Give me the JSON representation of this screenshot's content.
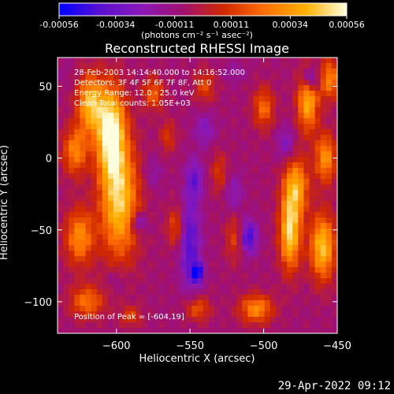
{
  "colorbar": {
    "ticks": [
      "-0.00056",
      "-0.00034",
      "-0.00011",
      "0.00011",
      "0.00034",
      "0.00056"
    ],
    "tick_values": [
      -0.00056,
      -0.00034,
      -0.00011,
      0.00011,
      0.00034,
      0.00056
    ],
    "range": [
      -0.00056,
      0.00056
    ],
    "label": "(photons cm⁻² s⁻¹ asec⁻²)",
    "stops": [
      "#0000ff",
      "#5a10d0",
      "#8a18b8",
      "#a01070",
      "#d02800",
      "#ff7000",
      "#ffb000",
      "#ffffe0"
    ]
  },
  "chart_data": {
    "type": "heatmap",
    "title": "Reconstructed RHESSI Image",
    "xlabel": "Heliocentric X (arcsec)",
    "ylabel": "Heliocentric Y (arcsec)",
    "xlim": [
      -640,
      -450
    ],
    "ylim": [
      -122,
      70
    ],
    "xticks": [
      -600,
      -550,
      -500,
      -450
    ],
    "yticks": [
      50,
      0,
      -50,
      -100
    ],
    "xtick_labels": [
      "−600",
      "−550",
      "−500",
      "−450"
    ],
    "ytick_labels": [
      "50",
      "0",
      "−50",
      "−100"
    ],
    "peak": {
      "x": -604,
      "y": 19
    },
    "blobs": [
      {
        "x": -604,
        "y": 19,
        "v": 0.00056,
        "sx": 7,
        "sy": 22
      },
      {
        "x": -618,
        "y": 38,
        "v": 0.0004,
        "sx": 6,
        "sy": 14
      },
      {
        "x": -598,
        "y": -30,
        "v": 0.00045,
        "sx": 9,
        "sy": 28
      },
      {
        "x": -625,
        "y": -55,
        "v": 0.0003,
        "sx": 7,
        "sy": 14
      },
      {
        "x": -628,
        "y": 5,
        "v": 0.00028,
        "sx": 6,
        "sy": 12
      },
      {
        "x": -575,
        "y": 45,
        "v": 0.0002,
        "sx": 5,
        "sy": 8
      },
      {
        "x": -560,
        "y": -48,
        "v": 0.00016,
        "sx": 4,
        "sy": 10
      },
      {
        "x": -565,
        "y": 15,
        "v": 0.0001,
        "sx": 4,
        "sy": 8
      },
      {
        "x": -540,
        "y": 50,
        "v": 0.00014,
        "sx": 5,
        "sy": 8
      },
      {
        "x": -530,
        "y": -10,
        "v": 0.0001,
        "sx": 4,
        "sy": 10
      },
      {
        "x": -520,
        "y": -55,
        "v": 0.00012,
        "sx": 4,
        "sy": 12
      },
      {
        "x": -500,
        "y": 35,
        "v": 0.00022,
        "sx": 5,
        "sy": 10
      },
      {
        "x": -478,
        "y": -20,
        "v": 0.00036,
        "sx": 6,
        "sy": 14
      },
      {
        "x": -482,
        "y": -52,
        "v": 0.00048,
        "sx": 5,
        "sy": 18
      },
      {
        "x": -460,
        "y": -62,
        "v": 0.00044,
        "sx": 6,
        "sy": 16
      },
      {
        "x": -470,
        "y": 40,
        "v": 0.0004,
        "sx": 5,
        "sy": 15
      },
      {
        "x": -455,
        "y": 55,
        "v": 0.00028,
        "sx": 5,
        "sy": 10
      },
      {
        "x": -458,
        "y": 0,
        "v": 0.00032,
        "sx": 5,
        "sy": 12
      },
      {
        "x": -505,
        "y": -105,
        "v": 0.0003,
        "sx": 8,
        "sy": 7
      },
      {
        "x": -620,
        "y": -100,
        "v": 0.00024,
        "sx": 8,
        "sy": 8
      },
      {
        "x": -545,
        "y": -105,
        "v": 0.00018,
        "sx": 6,
        "sy": 6
      },
      {
        "x": -590,
        "y": -110,
        "v": 0.00012,
        "sx": 5,
        "sy": 5
      },
      {
        "x": -585,
        "y": -45,
        "v": -0.00034,
        "sx": 4,
        "sy": 5
      },
      {
        "x": -550,
        "y": -60,
        "v": -0.0004,
        "sx": 5,
        "sy": 22
      },
      {
        "x": -545,
        "y": -80,
        "v": -0.0005,
        "sx": 3,
        "sy": 5
      },
      {
        "x": -547,
        "y": -15,
        "v": -0.00034,
        "sx": 4,
        "sy": 10
      },
      {
        "x": -510,
        "y": -55,
        "v": -0.00045,
        "sx": 4,
        "sy": 8
      },
      {
        "x": -520,
        "y": -25,
        "v": -0.00025,
        "sx": 4,
        "sy": 10
      },
      {
        "x": -540,
        "y": 20,
        "v": -0.00026,
        "sx": 5,
        "sy": 8
      },
      {
        "x": -468,
        "y": 55,
        "v": -0.00045,
        "sx": 4,
        "sy": 6
      },
      {
        "x": -485,
        "y": 10,
        "v": -0.00028,
        "sx": 4,
        "sy": 8
      },
      {
        "x": -575,
        "y": -10,
        "v": -0.0002,
        "sx": 4,
        "sy": 8
      },
      {
        "x": -600,
        "y": -85,
        "v": -0.00018,
        "sx": 5,
        "sy": 6
      },
      {
        "x": -520,
        "y": 60,
        "v": -0.00018,
        "sx": 5,
        "sy": 5
      },
      {
        "x": -635,
        "y": 60,
        "v": -0.00012,
        "sx": 4,
        "sy": 5
      }
    ],
    "baseline": -8e-05
  },
  "info": {
    "time_range": "28-Feb-2003 14:14:40.000 to 14:16:52.000",
    "detectors": "Detectors: 3F 4F 5F 6F 7F 8F, Att 0",
    "energy": "Energy Range: 12.0 - 25.0 keV",
    "clean": "Clean    Total counts: 1.05E+03",
    "peak_text": "Position of Peak = [-604,19]"
  },
  "timestamp": "29-Apr-2022 09:12"
}
